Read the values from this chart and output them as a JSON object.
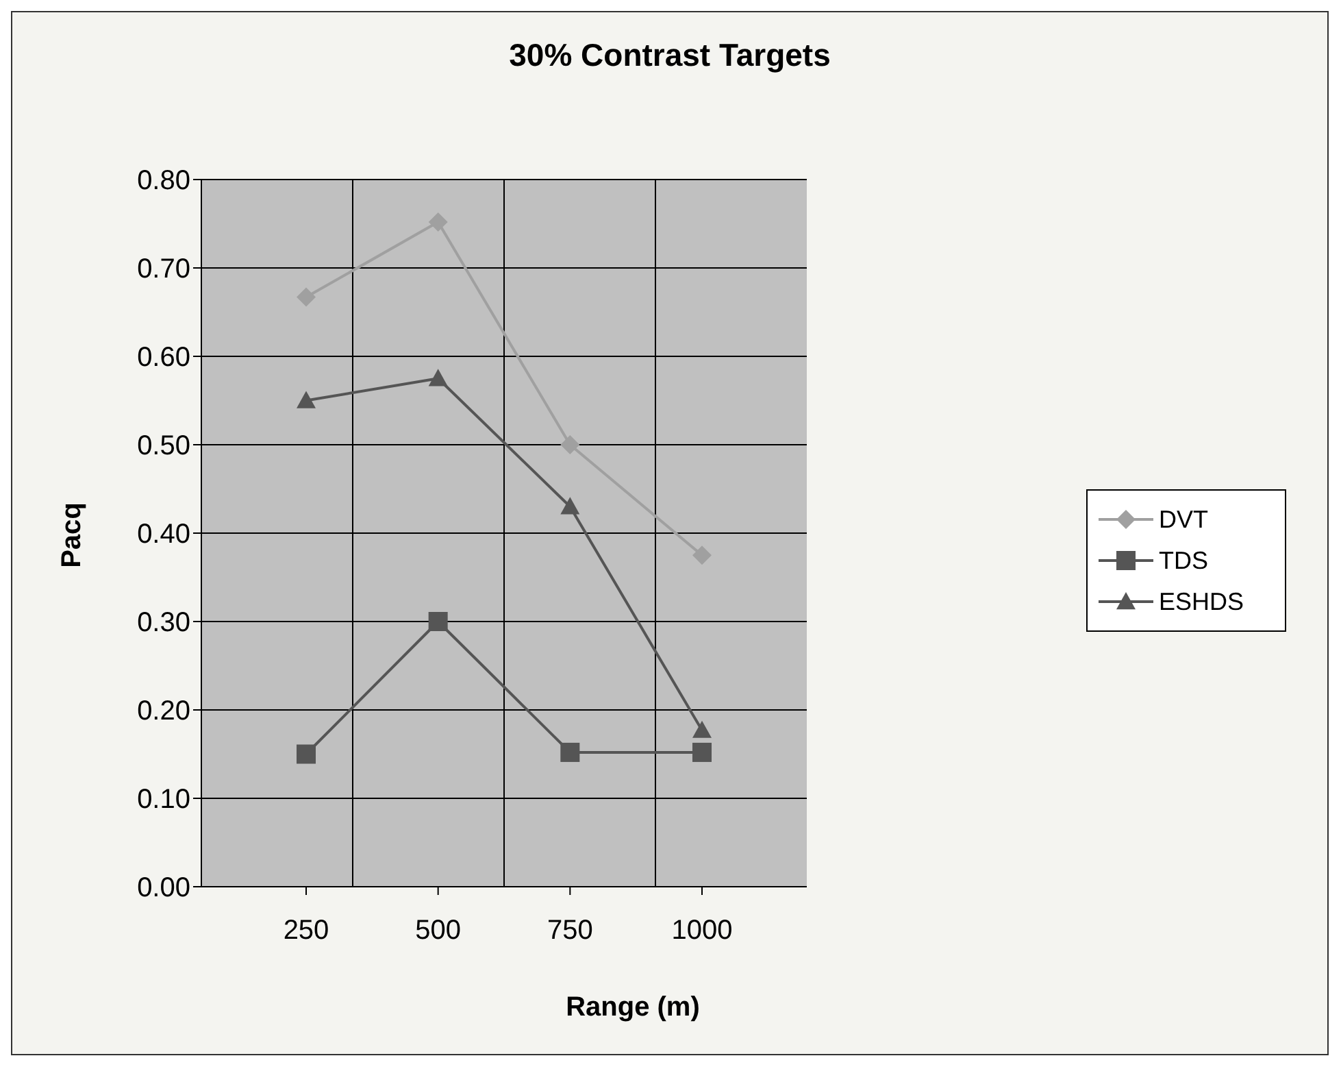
{
  "chart_data": {
    "type": "line",
    "title": "30% Contrast Targets",
    "xlabel": "Range (m)",
    "ylabel": "Pacq",
    "categories": [
      "250",
      "500",
      "750",
      "1000"
    ],
    "series": [
      {
        "name": "DVT",
        "color": "#a0a0a0",
        "marker": "diamond",
        "values": [
          0.667,
          0.752,
          0.5,
          0.375
        ]
      },
      {
        "name": "TDS",
        "color": "#555555",
        "marker": "square",
        "values": [
          0.15,
          0.3,
          0.152,
          0.152
        ]
      },
      {
        "name": "ESHDS",
        "color": "#555555",
        "marker": "triangle",
        "values": [
          0.55,
          0.575,
          0.43,
          0.177
        ]
      }
    ],
    "ylim": [
      0,
      0.8
    ],
    "yticks": [
      {
        "value": 0,
        "label": "0.00"
      },
      {
        "value": 0.1,
        "label": "0.10"
      },
      {
        "value": 0.2,
        "label": "0.20"
      },
      {
        "value": 0.3,
        "label": "0.30"
      },
      {
        "value": 0.4,
        "label": "0.40"
      },
      {
        "value": 0.5,
        "label": "0.50"
      },
      {
        "value": 0.6,
        "label": "0.60"
      },
      {
        "value": 0.7,
        "label": "0.70"
      },
      {
        "value": 0.8,
        "label": "0.80"
      }
    ],
    "grid": true,
    "legend": "right"
  }
}
